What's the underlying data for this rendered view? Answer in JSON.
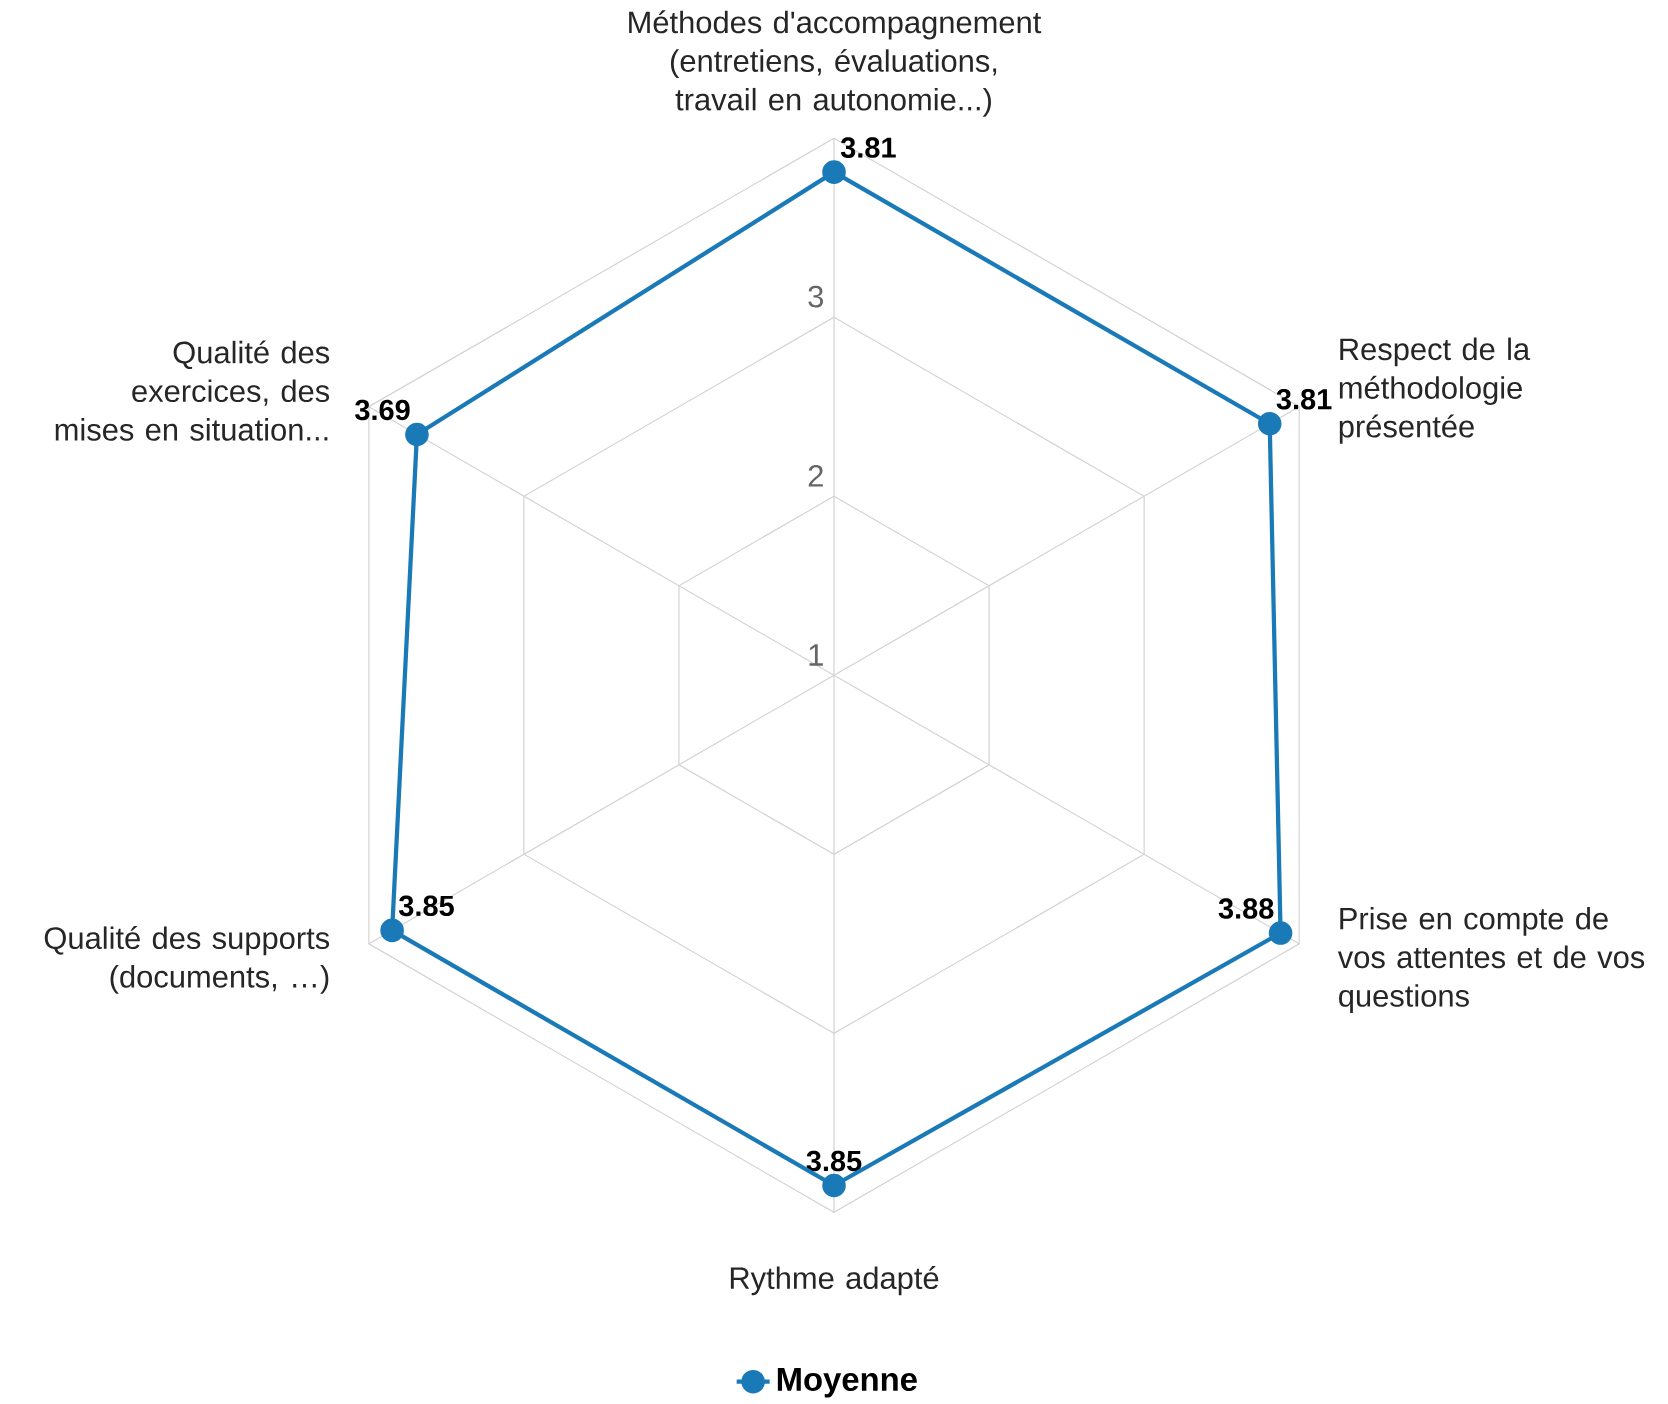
{
  "chart_data": {
    "type": "radar",
    "categories": [
      "Méthodes d'accompagnement (entretiens, évaluations, travail en autonomie...)",
      "Respect de la méthodologie présentée",
      "Prise en compte de vos attentes et de vos questions",
      "Rythme adapté",
      "Qualité des supports (documents, …)",
      "Qualité des exercices, des mises en situation..."
    ],
    "series": [
      {
        "name": "Moyenne",
        "color": "#1a7ab8",
        "values": [
          3.81,
          3.81,
          3.88,
          3.85,
          3.85,
          3.69
        ]
      }
    ],
    "ylim": [
      1,
      4
    ],
    "yticks": [
      1,
      2,
      3
    ],
    "grid": true,
    "legend": "bottom",
    "marker": "circle",
    "line_style": "solid",
    "data_labels": true
  }
}
